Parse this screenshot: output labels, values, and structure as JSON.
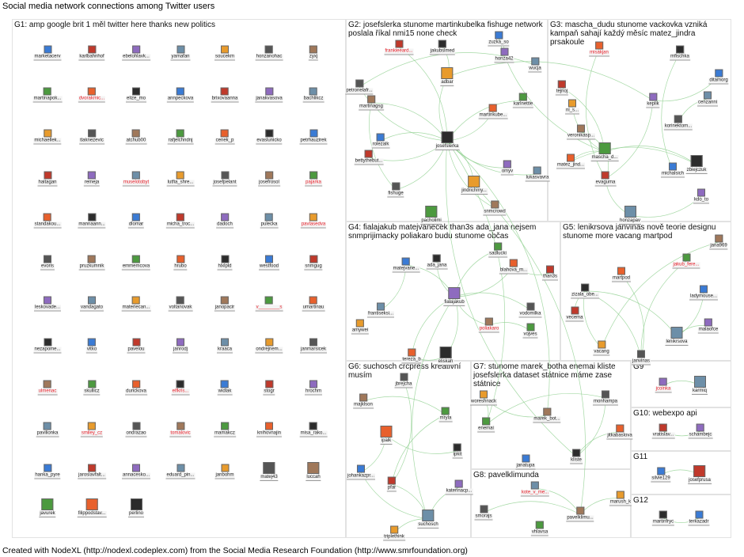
{
  "header": "Social media network connections among Twitter users",
  "footer": "Created with NodeXL (http://nodexl.codeplex.com) from the Social Media Research Foundation (http://www.smrfoundation.org)",
  "colors": {
    "edge": "#8fcf8f",
    "highlight_label": "#e8202a",
    "panel_border": "#e2e2e2"
  },
  "groups": [
    {
      "title": "G1: amp google brit 1 měl twitter here thanks new politics",
      "nodes": [
        {
          "label": "marketacerv"
        },
        {
          "label": "karlbahnhof"
        },
        {
          "label": "ebelohlavk..."
        },
        {
          "label": "yamafan"
        },
        {
          "label": "soucekm"
        },
        {
          "label": "honzanohac"
        },
        {
          "label": "zyxj"
        },
        {
          "label": "martinapok..."
        },
        {
          "label": "dvorakmic...",
          "red": true
        },
        {
          "label": "elize_mo"
        },
        {
          "label": "annpeckova"
        },
        {
          "label": "brixovaanna"
        },
        {
          "label": "janakvasova"
        },
        {
          "label": "bachlikcz"
        },
        {
          "label": "michaellek..."
        },
        {
          "label": "tlaknezevic"
        },
        {
          "label": "atchub00"
        },
        {
          "label": "rafjelchndnj"
        },
        {
          "label": "cenek_p"
        },
        {
          "label": "evaslunicko"
        },
        {
          "label": "petrhauzirek"
        },
        {
          "label": "haitagan"
        },
        {
          "label": "remeja"
        },
        {
          "label": "muselotobyt",
          "red": true
        },
        {
          "label": "lutfia_shre..."
        },
        {
          "label": "josefpelant"
        },
        {
          "label": "josefrosol"
        },
        {
          "label": "pajarka",
          "red": true
        },
        {
          "label": "standakou..."
        },
        {
          "label": "mannaann..."
        },
        {
          "label": "dlomar"
        },
        {
          "label": "micha_troc..."
        },
        {
          "label": "dadoch"
        },
        {
          "label": "pulecka"
        },
        {
          "label": "pavlasedva",
          "red": true
        },
        {
          "label": "evoris"
        },
        {
          "label": "pruzkumnik"
        },
        {
          "label": "emmemcova"
        },
        {
          "label": "hrubo"
        },
        {
          "label": "hlxlpld"
        },
        {
          "label": "westfood"
        },
        {
          "label": "snmgug"
        },
        {
          "label": "leskovade..."
        },
        {
          "label": "vandagato"
        },
        {
          "label": "materiecan..."
        },
        {
          "label": "voltanovak"
        },
        {
          "label": "janopacir"
        },
        {
          "label": "v________s",
          "red": true
        },
        {
          "label": "umartinau"
        },
        {
          "label": "nezapome..."
        },
        {
          "label": "vitko"
        },
        {
          "label": "pavelou"
        },
        {
          "label": "janrodj"
        },
        {
          "label": "kraaca"
        },
        {
          "label": "ondrejnem..."
        },
        {
          "label": "janmarsicek"
        },
        {
          "label": "ulmenac",
          "red": true
        },
        {
          "label": "skullicz"
        },
        {
          "label": "durickova"
        },
        {
          "label": "elfkris...",
          "red": true
        },
        {
          "label": "widlak"
        },
        {
          "label": "stogr"
        },
        {
          "label": "hrochm"
        },
        {
          "label": "pavilionka"
        },
        {
          "label": "smiley_cz",
          "red": true
        },
        {
          "label": "ondrazao"
        },
        {
          "label": "tomalovic",
          "red": true
        },
        {
          "label": "mamakcz"
        },
        {
          "label": "knihovnajin"
        },
        {
          "label": "misa_rako..."
        },
        {
          "label": "hanka_pyre"
        },
        {
          "label": "jaroslavfalt..."
        },
        {
          "label": "annacesko..."
        },
        {
          "label": "eduard_pin..."
        },
        {
          "label": "janbohm"
        },
        {
          "label": "matej43"
        },
        {
          "label": "luccah"
        },
        {
          "label": "javurek"
        },
        {
          "label": "filippodstav..."
        },
        {
          "label": "perlino"
        }
      ]
    },
    {
      "title": "G2: josefslerka stunome martinkubelka fishuge network poslala říkal nmi15 none check",
      "nodes": [
        {
          "label": "jakubslmed"
        },
        {
          "label": "zuzka_so"
        },
        {
          "label": "frankieeard...",
          "red": true
        },
        {
          "label": "honza42"
        },
        {
          "label": "wucja"
        },
        {
          "label": "adbar"
        },
        {
          "label": "petronelafr..."
        },
        {
          "label": "martinagsg"
        },
        {
          "label": "karlnettle"
        },
        {
          "label": "martinkube..."
        },
        {
          "label": "josefslerka"
        },
        {
          "label": "rolezalk"
        },
        {
          "label": "bettythebut..."
        },
        {
          "label": "omyv"
        },
        {
          "label": "lukasvavra"
        },
        {
          "label": "jindrichmy..."
        },
        {
          "label": "fishuge"
        },
        {
          "label": "snmcrowd"
        },
        {
          "label": "pacholimi"
        }
      ]
    },
    {
      "title": "G3: mascha_dudu stunome vackovka vzniká kampaň sahají každý měsíc matez_jindra prsakoule",
      "nodes": [
        {
          "label": "misakjan",
          "red": true
        },
        {
          "label": "mfischka"
        },
        {
          "label": "ditamorg"
        },
        {
          "label": "tejnoj"
        },
        {
          "label": "keplik"
        },
        {
          "label": "cenzanni"
        },
        {
          "label": "ni_s..."
        },
        {
          "label": "korinektom..."
        },
        {
          "label": "veronikasp..."
        },
        {
          "label": "mascha_d..."
        },
        {
          "label": "matez_jind..."
        },
        {
          "label": "zbiejczuk"
        },
        {
          "label": "michalsich"
        },
        {
          "label": "evaguma"
        },
        {
          "label": "kdo_to"
        },
        {
          "label": "honzapav"
        }
      ]
    },
    {
      "title": "G4: fialajakub matejvanecek than3s ada_jana nejsem snmprijimacky poliakaro budu stunome občas",
      "nodes": [
        {
          "label": "sadlucki"
        },
        {
          "label": "blahova_m..."
        },
        {
          "label": "ada_jana"
        },
        {
          "label": "matejvane..."
        },
        {
          "label": "than3s"
        },
        {
          "label": "fialajakub"
        },
        {
          "label": "frantiseksi..."
        },
        {
          "label": "amywei"
        },
        {
          "label": "vodomilka"
        },
        {
          "label": "poliakaro",
          "red": true
        },
        {
          "label": "vojves"
        },
        {
          "label": "tereza_b"
        },
        {
          "label": "eliskah"
        }
      ]
    },
    {
      "title": "G5: lenikrsova janvinas nově teorie designu stunome more vacang martpod",
      "nodes": [
        {
          "label": "jana969"
        },
        {
          "label": "jakub_fere...",
          "red": true
        },
        {
          "label": "martpod"
        },
        {
          "label": "zizala_obe..."
        },
        {
          "label": "ladymouse..."
        },
        {
          "label": "vecema"
        },
        {
          "label": "malaofce"
        },
        {
          "label": "lenikrsova"
        },
        {
          "label": "vacang"
        },
        {
          "label": "janvinas"
        }
      ]
    },
    {
      "title": "G6: suchosch crcpress kreativní musím",
      "nodes": [
        {
          "label": "jbrejcha"
        },
        {
          "label": "majklson"
        },
        {
          "label": "mryla"
        },
        {
          "label": "ipalk"
        },
        {
          "label": "ipkit"
        },
        {
          "label": "johankazpr..."
        },
        {
          "label": "pfar"
        },
        {
          "label": "katerinacp..."
        },
        {
          "label": "suchosch"
        },
        {
          "label": "triplethink"
        }
      ]
    },
    {
      "title": "G7: stunome marek_botha enemai kliste josefslerka dataset státnice máme zase státnice",
      "nodes": [
        {
          "label": "woreshnack"
        },
        {
          "label": "monhampa"
        },
        {
          "label": "marek_bot..."
        },
        {
          "label": "enemai"
        },
        {
          "label": "jitkabaslova"
        },
        {
          "label": "kliste"
        },
        {
          "label": "janatupa"
        }
      ]
    },
    {
      "title": "G8: pavelklimunda",
      "nodes": [
        {
          "label": "kote_v_me...",
          "red": true
        },
        {
          "label": "marush_k"
        },
        {
          "label": "smorajs"
        },
        {
          "label": "pavelklimu..."
        },
        {
          "label": "vhlavsa"
        }
      ]
    },
    {
      "title": "G9",
      "nodes": [
        {
          "label": "jcoinka",
          "red": true
        },
        {
          "label": "karmiq"
        }
      ]
    },
    {
      "title": "G10: webexpo api",
      "nodes": [
        {
          "label": "vratislav..."
        },
        {
          "label": "schambejc"
        }
      ]
    },
    {
      "title": "G11",
      "nodes": [
        {
          "label": "silvie129"
        },
        {
          "label": "josefprusa"
        }
      ]
    },
    {
      "title": "G12",
      "nodes": [
        {
          "label": "martinfryc"
        },
        {
          "label": "terkazadr"
        }
      ]
    }
  ],
  "edges": [
    [
      "josefslerka",
      "adbar"
    ],
    [
      "josefslerka",
      "martinkube..."
    ],
    [
      "josefslerka",
      "fishuge"
    ],
    [
      "josefslerka",
      "rolezalk"
    ],
    [
      "josefslerka",
      "bettythebut..."
    ],
    [
      "josefslerka",
      "omyv"
    ],
    [
      "josefslerka",
      "jindrichmy..."
    ],
    [
      "josefslerka",
      "snmcrowd"
    ],
    [
      "josefslerka",
      "petronelafr..."
    ],
    [
      "josefslerka",
      "martinagsg"
    ],
    [
      "josefslerka",
      "karlnettle"
    ],
    [
      "josefslerka",
      "lukasvavra"
    ],
    [
      "josefslerka",
      "marek_bot..."
    ],
    [
      "josefslerka",
      "kliste"
    ],
    [
      "josefslerka",
      "enemai"
    ],
    [
      "josefslerka",
      "frankieeard..."
    ],
    [
      "zuzka_so",
      "honza42"
    ],
    [
      "zuzka_so",
      "mascha_d..."
    ],
    [
      "jakubslmed",
      "adbar"
    ],
    [
      "wucja",
      "petronelafr..."
    ],
    [
      "adbar",
      "keplik"
    ],
    [
      "martinagsg",
      "fishuge"
    ],
    [
      "jindrichmy...",
      " pavelklimu..."
    ],
    [
      "mascha_d...",
      "tejnoj"
    ],
    [
      "mascha_d...",
      "evaguma"
    ],
    [
      "mascha_d...",
      "matez_jind..."
    ],
    [
      "mascha_d...",
      "zbiejczuk"
    ],
    [
      "mascha_d...",
      "veronikasp..."
    ],
    [
      "mascha_d...",
      "ni_s..."
    ],
    [
      "keplik",
      "ditamorg"
    ],
    [
      "keplik",
      "evaguma"
    ],
    [
      "mfischka",
      "michalsich"
    ],
    [
      "korinektom...",
      "cenzanni"
    ],
    [
      "evaguma",
      "honzapav"
    ],
    [
      "kdo_to",
      "honzapav"
    ],
    [
      "misakjan",
      "evaguma"
    ],
    [
      "matez_jind...",
      "zbiejczuk"
    ],
    [
      "fialajakub",
      "matejvane..."
    ],
    [
      "fialajakub",
      "ada_jana"
    ],
    [
      "fialajakub",
      "blahova_m..."
    ],
    [
      "fialajakub",
      "sadlucki"
    ],
    [
      "fialajakub",
      "poliakaro"
    ],
    [
      "fialajakub",
      "eliskah"
    ],
    [
      "fialajakub",
      "tereza_b"
    ],
    [
      "fialajakub",
      "vodomilka"
    ],
    [
      "fialajakub",
      "suchosch"
    ],
    [
      "matejvane...",
      "frantiseksi..."
    ],
    [
      "blahova_m...",
      "than3s"
    ],
    [
      "poliakaro",
      "vojves"
    ],
    [
      "tereza_b",
      "eliskah"
    ],
    [
      "zizala_obe...",
      "lenikrsova"
    ],
    [
      "zizala_obe...",
      "vacang"
    ],
    [
      "zizala_obe...",
      "janvinas"
    ],
    [
      "zizala_obe...",
      "vecema"
    ],
    [
      "martpod",
      "janvinas"
    ],
    [
      "jakub_fere...",
      "janvinas"
    ],
    [
      "lenikrsova",
      "malaofce"
    ],
    [
      "lenikrsova",
      "ladymouse..."
    ],
    [
      "vacang",
      "jana969"
    ],
    [
      "suchosch",
      "pfar"
    ],
    [
      "suchosch",
      "katerinacp..."
    ],
    [
      "suchosch",
      "triplethink"
    ],
    [
      "suchosch",
      "johankazpr..."
    ],
    [
      "pfar",
      "jbrejcha"
    ],
    [
      "pfar",
      "mryla"
    ],
    [
      "ipalk",
      "ipkit"
    ],
    [
      "majklson",
      "mryla"
    ],
    [
      "johankazpr...",
      "ipalk"
    ],
    [
      "enemai",
      "monhampa"
    ],
    [
      "enemai",
      "woreshnack"
    ],
    [
      "marek_bot...",
      "woreshnack"
    ],
    [
      "kliste",
      "monhampa"
    ],
    [
      "kliste",
      "jitkabaslova"
    ],
    [
      "pavelklimu...",
      "kote_v_me..."
    ],
    [
      "pavelklimu...",
      "marush_k"
    ],
    [
      "pavelklimu...",
      "smorajs"
    ],
    [
      "jcoinka",
      "karmiq"
    ],
    [
      "vratislav...",
      "schambejc"
    ],
    [
      "silvie129",
      "josefprusa"
    ],
    [
      "martinfryc",
      "terkazadr"
    ]
  ]
}
